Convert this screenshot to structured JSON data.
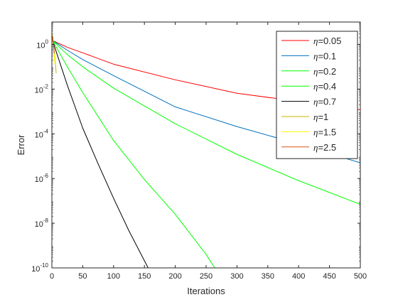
{
  "chart_data": {
    "type": "line",
    "title": "",
    "xlabel": "Iterations",
    "ylabel": "Error",
    "xlim": [
      0,
      500
    ],
    "ylim": [
      1e-10,
      10
    ],
    "yscale": "log",
    "grid": false,
    "legend_position": "top-right",
    "x_ticks": [
      0,
      50,
      100,
      150,
      200,
      250,
      300,
      350,
      400,
      450,
      500
    ],
    "y_ticks": [
      {
        "value": 1,
        "mantissa": "10",
        "exponent": "0"
      },
      {
        "value": 0.01,
        "mantissa": "10",
        "exponent": "-2"
      },
      {
        "value": 0.0001,
        "mantissa": "10",
        "exponent": "-4"
      },
      {
        "value": 1e-06,
        "mantissa": "10",
        "exponent": "-6"
      },
      {
        "value": 1e-08,
        "mantissa": "10",
        "exponent": "-8"
      },
      {
        "value": 1e-10,
        "mantissa": "10",
        "exponent": "-10"
      }
    ],
    "series": [
      {
        "name": "=0.05",
        "color": "#ff0000",
        "x": [
          0,
          1,
          25,
          50,
          100,
          200,
          300,
          400,
          500
        ],
        "y": [
          1.5,
          1.5,
          0.74,
          0.42,
          0.13,
          0.026,
          0.0065,
          0.0028,
          0.0012
        ]
      },
      {
        "name": "=0.1",
        "color": "#0072bd",
        "x": [
          0,
          1,
          25,
          50,
          100,
          200,
          300,
          400,
          500
        ],
        "y": [
          1.5,
          1.5,
          0.55,
          0.21,
          0.04,
          0.0016,
          0.00021,
          3.5e-05,
          5e-06
        ]
      },
      {
        "name": "=0.2",
        "color": "#00ff00",
        "x": [
          0,
          1,
          25,
          50,
          100,
          150,
          200,
          250,
          264
        ],
        "y": [
          1.5,
          1.5,
          0.1,
          0.007,
          5e-05,
          9e-07,
          2.5e-08,
          4e-10,
          1e-10
        ]
      },
      {
        "name": "=0.4",
        "color": "#00ff00",
        "x": [
          0,
          1,
          25,
          50,
          100,
          200,
          300,
          400,
          500
        ],
        "y": [
          1.5,
          1.5,
          0.35,
          0.1,
          0.011,
          0.00028,
          1.2e-05,
          8e-07,
          7e-08
        ]
      },
      {
        "name": "=0.7",
        "color": "#000000",
        "x": [
          0,
          1,
          25,
          50,
          75,
          100,
          125,
          156
        ],
        "y": [
          1.5,
          1.5,
          0.015,
          0.00018,
          4.5e-06,
          1.3e-07,
          4.5e-09,
          1e-10
        ]
      },
      {
        "name": "=1",
        "color": "#c8b400",
        "x": [
          0,
          1,
          2,
          3,
          4,
          5,
          6,
          7
        ],
        "y": [
          1.5,
          2.6,
          1.2,
          0.8,
          0.45,
          0.22,
          0.11,
          0.05
        ]
      },
      {
        "name": "=1.5",
        "color": "#ffff00",
        "x": [
          0,
          1,
          2,
          3,
          4,
          5
        ],
        "y": [
          1.5,
          1.8,
          1.0,
          0.55,
          0.28,
          0.13
        ]
      },
      {
        "name": "=2.5",
        "color": "#d95319",
        "x": [
          0,
          1,
          2,
          3,
          4
        ],
        "y": [
          1.5,
          2.2,
          1.3,
          0.75,
          0.4
        ]
      }
    ]
  }
}
